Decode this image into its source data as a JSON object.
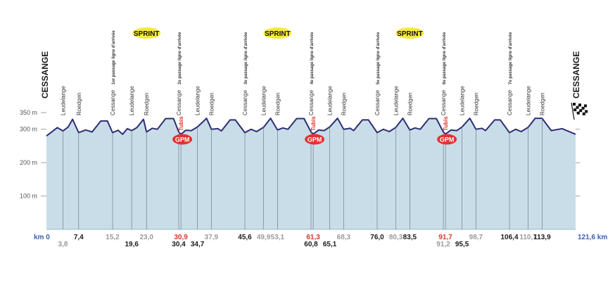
{
  "start_town": "CESSANGE",
  "finish_town": "CESSANGE",
  "altitude_labels": [
    "350 m",
    "300 m",
    "200 m",
    "100 m"
  ],
  "km_start_label": "km 0",
  "km_end_label": "121,6 km",
  "sprint_label": "SPRINT",
  "gpm_label": "GPM",
  "sprints_at_km": [
    23.0,
    53.1,
    83.5
  ],
  "gpm_at_km": [
    30.9,
    61.3,
    91.7
  ],
  "colors": {
    "profile_fill": "#c9dde9",
    "profile_line": "#2e2e73",
    "sprint_badge": "#f7e93a",
    "gpm_badge": "#e0342e",
    "highlight_text": "#e0342e",
    "muted_text": "#9a9a9a",
    "dark_text": "#1a1a1a",
    "axis_text": "#3b62a8"
  },
  "chart_data": {
    "type": "area",
    "xlim": [
      0,
      121.6
    ],
    "ylim": [
      0,
      360
    ],
    "profile": [
      {
        "km": 0,
        "alt": 280
      },
      {
        "km": 1.5,
        "alt": 295
      },
      {
        "km": 2.5,
        "alt": 305
      },
      {
        "km": 3.8,
        "alt": 295
      },
      {
        "km": 5.0,
        "alt": 307
      },
      {
        "km": 6.0,
        "alt": 330
      },
      {
        "km": 7.4,
        "alt": 290
      },
      {
        "km": 9.0,
        "alt": 298
      },
      {
        "km": 10.5,
        "alt": 292
      },
      {
        "km": 12.5,
        "alt": 325
      },
      {
        "km": 14.0,
        "alt": 325
      },
      {
        "km": 15.2,
        "alt": 290
      },
      {
        "km": 16.5,
        "alt": 297
      },
      {
        "km": 17.5,
        "alt": 285
      },
      {
        "km": 18.6,
        "alt": 302
      },
      {
        "km": 19.6,
        "alt": 296
      },
      {
        "km": 20.8,
        "alt": 305
      },
      {
        "km": 22.3,
        "alt": 330
      },
      {
        "km": 23.0,
        "alt": 292
      },
      {
        "km": 24.3,
        "alt": 303
      },
      {
        "km": 25.5,
        "alt": 300
      },
      {
        "km": 27.4,
        "alt": 332
      },
      {
        "km": 29.2,
        "alt": 332
      },
      {
        "km": 30.4,
        "alt": 292
      },
      {
        "km": 30.9,
        "alt": 285
      },
      {
        "km": 32.0,
        "alt": 297
      },
      {
        "km": 33.3,
        "alt": 296
      },
      {
        "km": 34.7,
        "alt": 307
      },
      {
        "km": 36.8,
        "alt": 333
      },
      {
        "km": 37.9,
        "alt": 300
      },
      {
        "km": 39.4,
        "alt": 302
      },
      {
        "km": 40.2,
        "alt": 295
      },
      {
        "km": 42.2,
        "alt": 328
      },
      {
        "km": 43.4,
        "alt": 328
      },
      {
        "km": 45.6,
        "alt": 290
      },
      {
        "km": 47.0,
        "alt": 300
      },
      {
        "km": 48.3,
        "alt": 293
      },
      {
        "km": 49.9,
        "alt": 306
      },
      {
        "km": 51.5,
        "alt": 333
      },
      {
        "km": 53.1,
        "alt": 298
      },
      {
        "km": 54.3,
        "alt": 304
      },
      {
        "km": 55.5,
        "alt": 300
      },
      {
        "km": 57.5,
        "alt": 332
      },
      {
        "km": 59.2,
        "alt": 332
      },
      {
        "km": 60.8,
        "alt": 292
      },
      {
        "km": 61.3,
        "alt": 286
      },
      {
        "km": 62.6,
        "alt": 298
      },
      {
        "km": 63.8,
        "alt": 296
      },
      {
        "km": 65.1,
        "alt": 307
      },
      {
        "km": 66.9,
        "alt": 333
      },
      {
        "km": 68.3,
        "alt": 300
      },
      {
        "km": 69.8,
        "alt": 303
      },
      {
        "km": 70.6,
        "alt": 296
      },
      {
        "km": 72.6,
        "alt": 328
      },
      {
        "km": 74.0,
        "alt": 328
      },
      {
        "km": 76.0,
        "alt": 290
      },
      {
        "km": 77.4,
        "alt": 300
      },
      {
        "km": 78.8,
        "alt": 293
      },
      {
        "km": 80.3,
        "alt": 306
      },
      {
        "km": 81.9,
        "alt": 333
      },
      {
        "km": 83.5,
        "alt": 298
      },
      {
        "km": 84.7,
        "alt": 304
      },
      {
        "km": 85.9,
        "alt": 300
      },
      {
        "km": 87.9,
        "alt": 332
      },
      {
        "km": 89.6,
        "alt": 332
      },
      {
        "km": 91.2,
        "alt": 292
      },
      {
        "km": 91.7,
        "alt": 286
      },
      {
        "km": 93.0,
        "alt": 298
      },
      {
        "km": 94.3,
        "alt": 296
      },
      {
        "km": 95.5,
        "alt": 307
      },
      {
        "km": 97.3,
        "alt": 333
      },
      {
        "km": 98.7,
        "alt": 300
      },
      {
        "km": 100.1,
        "alt": 303
      },
      {
        "km": 100.9,
        "alt": 296
      },
      {
        "km": 103.0,
        "alt": 328
      },
      {
        "km": 104.3,
        "alt": 328
      },
      {
        "km": 106.4,
        "alt": 290
      },
      {
        "km": 107.8,
        "alt": 300
      },
      {
        "km": 109.1,
        "alt": 293
      },
      {
        "km": 110.7,
        "alt": 306
      },
      {
        "km": 112.3,
        "alt": 333
      },
      {
        "km": 113.9,
        "alt": 333
      },
      {
        "km": 116.0,
        "alt": 296
      },
      {
        "km": 118.5,
        "alt": 302
      },
      {
        "km": 121.6,
        "alt": 285
      }
    ],
    "markers": [
      {
        "km": 3.8,
        "label": "Leudelange",
        "km_label": "3,8",
        "km_style": "muted",
        "km_row": 1
      },
      {
        "km": 7.4,
        "label": "Roedgen",
        "km_label": "7,4",
        "km_style": "dark",
        "km_row": 0
      },
      {
        "km": 15.2,
        "label": "Cessange",
        "km_label": "15,2",
        "km_style": "muted",
        "km_row": 0,
        "passage": "1er passage ligne d'arrivée"
      },
      {
        "km": 19.6,
        "label": "Leudelange",
        "km_label": "19,6",
        "km_style": "dark",
        "km_row": 1
      },
      {
        "km": 23.0,
        "label": "Roedgen",
        "km_label": "23,0",
        "km_style": "muted",
        "km_row": 0
      },
      {
        "km": 30.4,
        "label": "Cessange",
        "km_label": "30,4",
        "km_style": "dark",
        "km_row": 1,
        "passage": "2e passage ligne d'arrivée"
      },
      {
        "km": 30.9,
        "label": "Tubis",
        "km_label": "30,9",
        "km_style": "highlight",
        "km_row": 0
      },
      {
        "km": 34.7,
        "label": "Leudelange",
        "km_label": "34,7",
        "km_style": "dark",
        "km_row": 1
      },
      {
        "km": 37.9,
        "label": "Roedgen",
        "km_label": "37,9",
        "km_style": "muted",
        "km_row": 0
      },
      {
        "km": 45.6,
        "label": "Cessange",
        "km_label": "45,6",
        "km_style": "dark",
        "km_row": 0,
        "passage": "3e passage ligne d'arrivée"
      },
      {
        "km": 49.9,
        "label": "Leudelange",
        "km_label": "49,9",
        "km_style": "muted",
        "km_row": 0
      },
      {
        "km": 53.1,
        "label": "Roedgen",
        "km_label": "53,1",
        "km_style": "muted",
        "km_row": 0
      },
      {
        "km": 60.8,
        "label": "Cessange",
        "km_label": "60,8",
        "km_style": "dark",
        "km_row": 1,
        "passage": "4e passage ligne d'arrivée"
      },
      {
        "km": 61.3,
        "label": "Tubis",
        "km_label": "61,3",
        "km_style": "highlight",
        "km_row": 0
      },
      {
        "km": 65.1,
        "label": "Leudelange",
        "km_label": "65,1",
        "km_style": "dark",
        "km_row": 1
      },
      {
        "km": 68.3,
        "label": "Roedgen",
        "km_label": "68,3",
        "km_style": "muted",
        "km_row": 0
      },
      {
        "km": 76.0,
        "label": "Cessange",
        "km_label": "76,0",
        "km_style": "dark",
        "km_row": 0,
        "passage": "5e passage ligne d'arrivée"
      },
      {
        "km": 80.3,
        "label": "Leudelange",
        "km_label": "80,3",
        "km_style": "muted",
        "km_row": 0
      },
      {
        "km": 83.5,
        "label": "Roedgen",
        "km_label": "83,5",
        "km_style": "dark",
        "km_row": 0
      },
      {
        "km": 91.2,
        "label": "Cessange",
        "km_label": "91,2",
        "km_style": "muted",
        "km_row": 1,
        "passage": "6e passage ligne d'arrivée"
      },
      {
        "km": 91.7,
        "label": "Tubis",
        "km_label": "91,7",
        "km_style": "highlight",
        "km_row": 0
      },
      {
        "km": 95.5,
        "label": "Leudelange",
        "km_label": "95,5",
        "km_style": "dark",
        "km_row": 1
      },
      {
        "km": 98.7,
        "label": "Roedgen",
        "km_label": "98,7",
        "km_style": "muted",
        "km_row": 0
      },
      {
        "km": 106.4,
        "label": "Cessange",
        "km_label": "106,4",
        "km_style": "dark",
        "km_row": 0,
        "passage": "7e passage ligne d'arrivée"
      },
      {
        "km": 110.7,
        "label": "Leudelange",
        "km_label": "110,7",
        "km_style": "muted",
        "km_row": 0
      },
      {
        "km": 113.9,
        "label": "Roedgen",
        "km_label": "113,9",
        "km_style": "dark",
        "km_row": 0
      }
    ]
  }
}
